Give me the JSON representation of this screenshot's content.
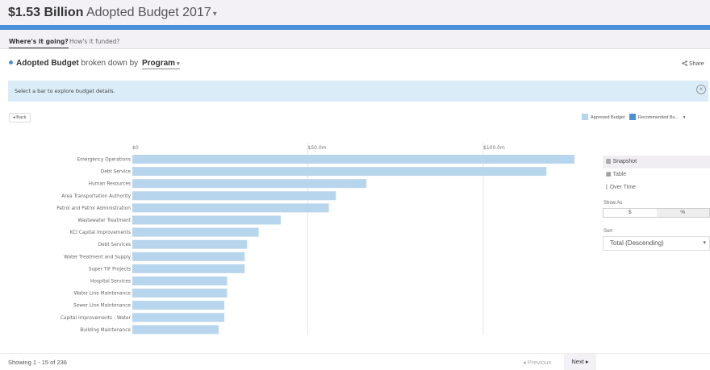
{
  "header": {
    "amount": "$1.53 Billion",
    "subtitle": "Adopted Budget",
    "year": "2017",
    "caret": "▾"
  },
  "tabs": [
    {
      "label": "Where's it going?",
      "active": true
    },
    {
      "label": "How's it funded?",
      "active": false
    }
  ],
  "breakdown": {
    "strong": "Adopted Budget",
    "by": "broken down by",
    "selected": "Program",
    "caret": "▾"
  },
  "share": {
    "icon": "share-icon",
    "label": "Share"
  },
  "info": {
    "message": "Select a bar to explore budget details.",
    "close_icon": "close-circle-icon"
  },
  "back": {
    "label": "◂ Back"
  },
  "legend": [
    {
      "label": "Approved Budget",
      "color": "#b8d5ee"
    },
    {
      "label": "Recommended Bu...",
      "color": "#4a90d9"
    }
  ],
  "legend_caret": "▾",
  "colors": {
    "bar": "#b8d5ee",
    "grid": "#e6e6e6",
    "accent": "#4a90d9"
  },
  "chart_data": {
    "type": "bar",
    "orientation": "horizontal",
    "tick_labels": [
      "$0",
      "$50.0m",
      "$100.0m"
    ],
    "ticks": [
      0,
      50,
      100
    ],
    "xlim": [
      0,
      130
    ],
    "categories": [
      "Emergency Operations",
      "Debt Service",
      "Human Resources",
      "Area Transportation Authority",
      "Patrol and Patrol Administration",
      "Wastewater Treatment",
      "KCI Capital Improvements",
      "Debt Services",
      "Water Treatment and Supply",
      "Super TIF Projects",
      "Hospital Services",
      "Water Line Maintenance",
      "Sewer Line Maintenance",
      "Capital Improvements - Water",
      "Building Maintenance"
    ],
    "values": [
      126,
      118,
      66.7,
      58,
      56,
      42.3,
      36,
      32.7,
      32,
      32,
      27,
      27,
      26.2,
      26.2,
      24.6
    ],
    "series": [
      {
        "values": [
          126,
          118,
          66.7,
          58,
          56,
          42.3,
          36,
          32.7,
          32,
          32,
          27,
          27,
          26.2,
          26.2,
          24.6
        ]
      }
    ]
  },
  "sidebar": {
    "views": [
      {
        "label": "Snapshot",
        "icon": "bar-chart-icon",
        "active": true
      },
      {
        "label": "Table",
        "icon": "table-icon",
        "active": false
      },
      {
        "label": "Over Time",
        "icon": "line-chart-icon",
        "active": false
      }
    ],
    "show_as_label": "Show As",
    "show_as_options": [
      "$",
      "%"
    ],
    "sort_label": "Sort",
    "sort_value": "Total (Descending)",
    "sort_caret": "▾"
  },
  "footer": {
    "showing": "Showing 1 - 15 of 236",
    "previous": "◂ Previous",
    "next": "Next ▸"
  }
}
